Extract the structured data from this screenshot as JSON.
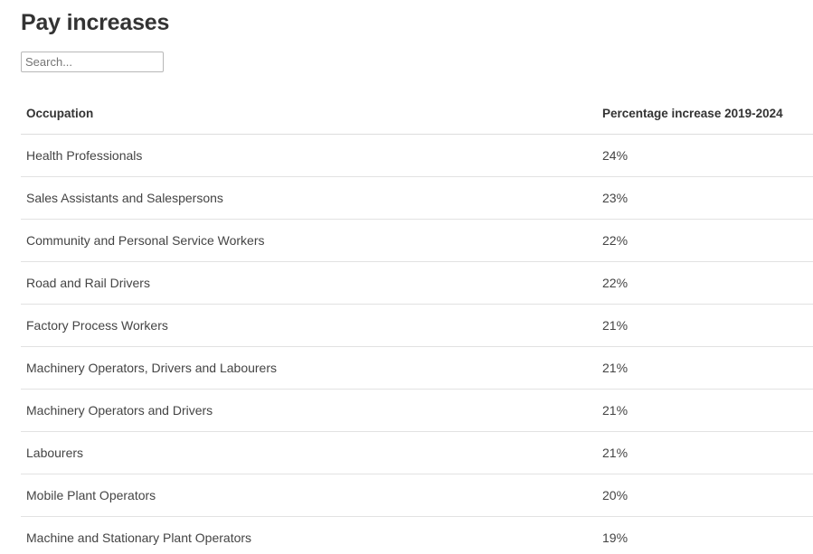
{
  "page": {
    "title": "Pay increases"
  },
  "search": {
    "placeholder": "Search...",
    "value": ""
  },
  "table": {
    "columns": [
      "Occupation",
      "Percentage increase 2019-2024"
    ],
    "rows": [
      {
        "occupation": "Health Professionals",
        "increase": "24%"
      },
      {
        "occupation": "Sales Assistants and Salespersons",
        "increase": "23%"
      },
      {
        "occupation": "Community and Personal Service Workers",
        "increase": "22%"
      },
      {
        "occupation": "Road and Rail Drivers",
        "increase": "22%"
      },
      {
        "occupation": "Factory Process Workers",
        "increase": "21%"
      },
      {
        "occupation": "Machinery Operators, Drivers and Labourers",
        "increase": "21%"
      },
      {
        "occupation": "Machinery Operators and Drivers",
        "increase": "21%"
      },
      {
        "occupation": "Labourers",
        "increase": "21%"
      },
      {
        "occupation": "Mobile Plant Operators",
        "increase": "20%"
      },
      {
        "occupation": "Machine and Stationary Plant Operators",
        "increase": "19%"
      }
    ]
  }
}
